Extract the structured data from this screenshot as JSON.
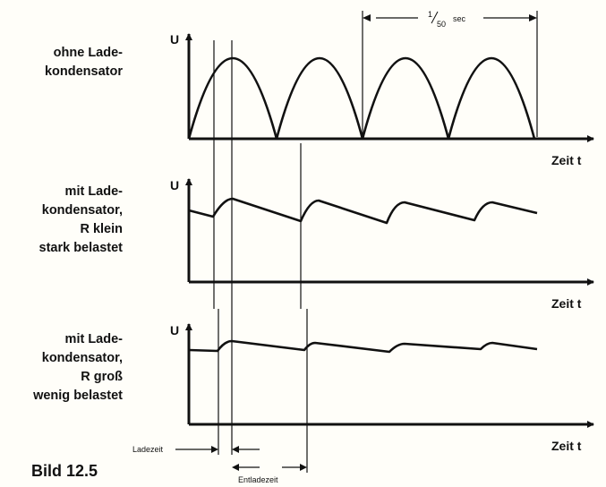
{
  "panels": [
    {
      "label_lines": [
        "ohne Lade-",
        "kondensator"
      ],
      "y_axis": "U",
      "x_axis": "Zeit  t"
    },
    {
      "label_lines": [
        "mit Lade-",
        "kondensator,",
        "R klein",
        "stark belastet"
      ],
      "y_axis": "U",
      "x_axis": "Zeit  t"
    },
    {
      "label_lines": [
        "mit Lade-",
        "kondensator,",
        "R groß",
        "wenig belastet"
      ],
      "y_axis": "U",
      "x_axis": "Zeit  t"
    }
  ],
  "period": {
    "numerator": "1",
    "denominator": "50",
    "unit": "sec"
  },
  "ladezeit": "Ladezeit",
  "entladezeit": "Entladezeit",
  "figure": "Bild 12.5"
}
